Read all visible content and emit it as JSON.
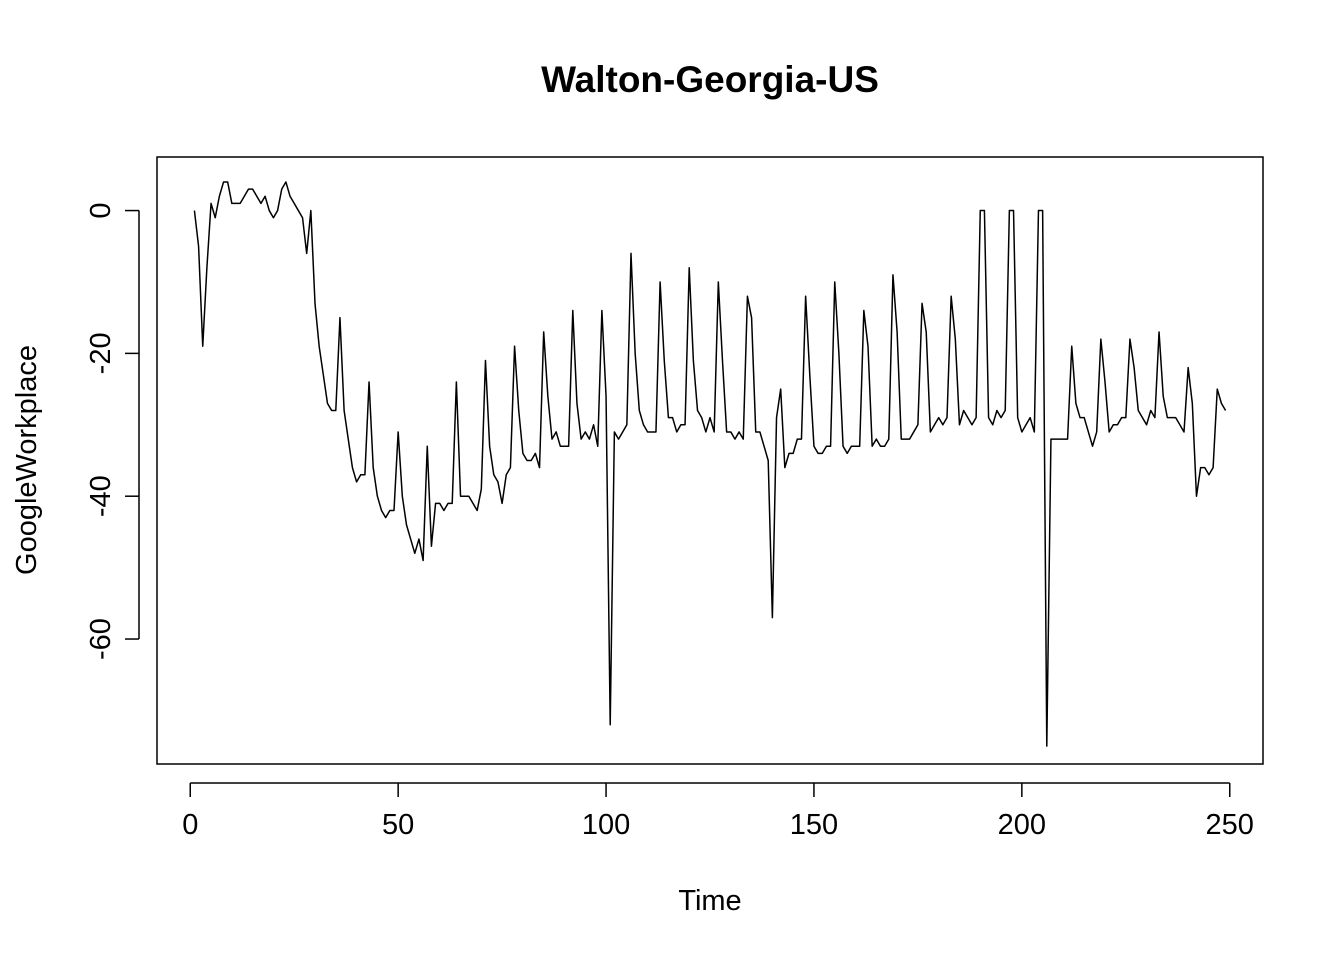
{
  "chart_data": {
    "type": "line",
    "title": "Walton-Georgia-US",
    "xlabel": "Time",
    "ylabel": "GoogleWorkplace",
    "xlim": [
      -8,
      258
    ],
    "ylim": [
      -77.5,
      7.5
    ],
    "xticks": [
      0,
      50,
      100,
      150,
      200,
      250
    ],
    "yticks": [
      0,
      -20,
      -40,
      -60
    ],
    "grid": false,
    "legend": "none",
    "line_color": "#000000",
    "series": [
      {
        "values": [
          0,
          -5,
          -19,
          -8,
          1,
          -1,
          2,
          4,
          4,
          1,
          1,
          1,
          2,
          3,
          3,
          2,
          1,
          2,
          0,
          -1,
          0,
          3,
          4,
          2,
          1,
          0,
          -1,
          -6,
          0,
          -13,
          -19,
          -23,
          -27,
          -28,
          -28,
          -15,
          -28,
          -32,
          -36,
          -38,
          -37,
          -37,
          -24,
          -36,
          -40,
          -42,
          -43,
          -42,
          -42,
          -31,
          -40,
          -44,
          -46,
          -48,
          -46,
          -49,
          -33,
          -47,
          -41,
          -41,
          -42,
          -41,
          -41,
          -24,
          -40,
          -40,
          -40,
          -41,
          -42,
          -39,
          -21,
          -33,
          -37,
          -38,
          -41,
          -37,
          -36,
          -19,
          -28,
          -34,
          -35,
          -35,
          -34,
          -36,
          -17,
          -26,
          -32,
          -31,
          -33,
          -33,
          -33,
          -14,
          -27,
          -32,
          -31,
          -32,
          -30,
          -33,
          -14,
          -26,
          -72,
          -31,
          -32,
          -31,
          -30,
          -6,
          -20,
          -28,
          -30,
          -31,
          -31,
          -31,
          -10,
          -21,
          -29,
          -29,
          -31,
          -30,
          -30,
          -8,
          -21,
          -28,
          -29,
          -31,
          -29,
          -31,
          -10,
          -21,
          -31,
          -31,
          -32,
          -31,
          -32,
          -12,
          -15,
          -31,
          -31,
          -33,
          -35,
          -57,
          -29,
          -25,
          -36,
          -34,
          -34,
          -32,
          -32,
          -12,
          -23,
          -33,
          -34,
          -34,
          -33,
          -33,
          -10,
          -20,
          -33,
          -34,
          -33,
          -33,
          -33,
          -14,
          -19,
          -33,
          -32,
          -33,
          -33,
          -32,
          -9,
          -17,
          -32,
          -32,
          -32,
          -31,
          -30,
          -13,
          -17,
          -31,
          -30,
          -29,
          -30,
          -29,
          -12,
          -18,
          -30,
          -28,
          -29,
          -30,
          -29,
          0,
          0,
          -29,
          -30,
          -28,
          -29,
          -28,
          0,
          0,
          -29,
          -31,
          -30,
          -29,
          -31,
          0,
          0,
          -75,
          -32,
          -32,
          -32,
          -32,
          -32,
          -19,
          -27,
          -29,
          -29,
          -31,
          -33,
          -31,
          -18,
          -24,
          -31,
          -30,
          -30,
          -29,
          -29,
          -18,
          -22,
          -28,
          -29,
          -30,
          -28,
          -29,
          -17,
          -26,
          -29,
          -29,
          -29,
          -30,
          -31,
          -22,
          -27,
          -40,
          -36,
          -36,
          -37,
          -36,
          -25,
          -27,
          -28
        ]
      }
    ]
  }
}
